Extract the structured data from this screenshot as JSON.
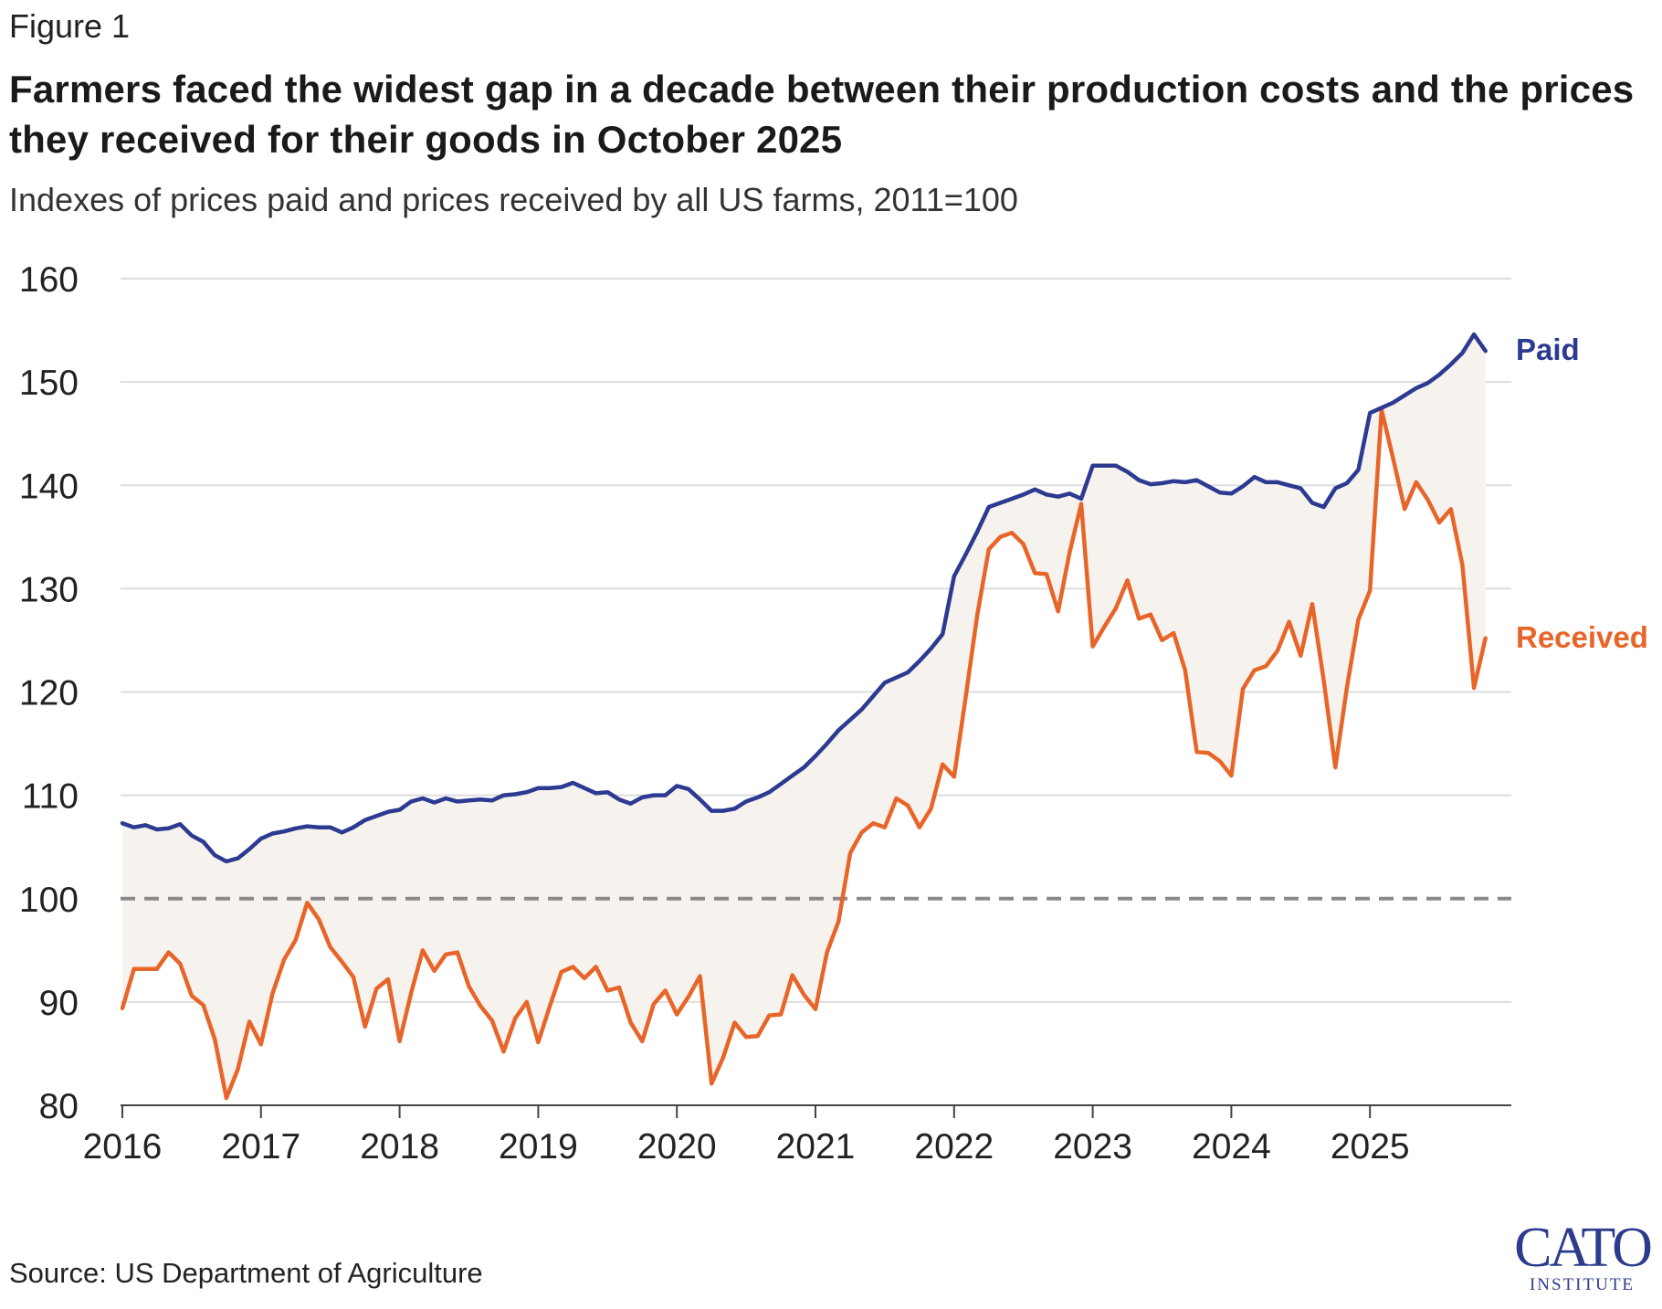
{
  "figure_label": "Figure 1",
  "source": "Source: US Department of Agriculture",
  "logo": {
    "main": "CATO",
    "sub": "INSTITUTE"
  },
  "colors": {
    "paid": "#2c3a91",
    "received": "#e8652a",
    "gap": "#f6f2ee",
    "grid": "#dddddd",
    "reference": "#8a8a8a"
  },
  "chart_data": {
    "type": "line",
    "title": "Farmers faced the widest gap in a decade between their production costs and the prices they received for their goods in October 2025",
    "subtitle": "Indexes of prices paid and prices received by all US farms, 2011=100",
    "xlabel": "",
    "ylabel": "",
    "ylim": [
      80,
      160
    ],
    "yticks": [
      80,
      90,
      100,
      110,
      120,
      130,
      140,
      150,
      160
    ],
    "x_tick_labels": [
      "2016",
      "2017",
      "2018",
      "2019",
      "2020",
      "2021",
      "2022",
      "2023",
      "2024",
      "2025"
    ],
    "reference_line": {
      "value": 100,
      "style": "dashed"
    },
    "x_start": "2016-01",
    "x_end": "2025-11",
    "frequency": "monthly",
    "shaded_between_series": true,
    "series": [
      {
        "name": "Paid",
        "label": "Paid",
        "values": [
          107.3,
          106.9,
          107.1,
          106.7,
          106.8,
          107.2,
          106.1,
          105.5,
          104.2,
          103.6,
          103.9,
          104.8,
          105.8,
          106.3,
          106.5,
          106.8,
          107.0,
          106.9,
          106.9,
          106.4,
          106.9,
          107.6,
          108.0,
          108.4,
          108.6,
          109.4,
          109.7,
          109.3,
          109.7,
          109.4,
          109.5,
          109.6,
          109.5,
          110.0,
          110.1,
          110.3,
          110.7,
          110.7,
          110.8,
          111.2,
          110.7,
          110.2,
          110.3,
          109.6,
          109.2,
          109.8,
          110.0,
          110.0,
          110.9,
          110.6,
          109.6,
          108.5,
          108.5,
          108.7,
          109.4,
          109.8,
          110.3,
          111.1,
          111.9,
          112.7,
          113.8,
          115.0,
          116.3,
          117.3,
          118.3,
          119.6,
          120.9,
          121.4,
          121.9,
          123.0,
          124.2,
          125.6,
          131.2,
          133.3,
          135.5,
          137.9,
          138.3,
          138.7,
          139.1,
          139.6,
          139.1,
          138.9,
          139.2,
          138.7,
          141.9,
          141.9,
          141.9,
          141.3,
          140.5,
          140.1,
          140.2,
          140.4,
          140.3,
          140.5,
          139.9,
          139.3,
          139.2,
          139.9,
          140.8,
          140.3,
          140.3,
          140.0,
          139.7,
          138.3,
          137.9,
          139.7,
          140.2,
          141.5,
          147.0,
          147.5,
          148.0,
          148.7,
          149.4,
          149.9,
          150.7,
          151.7,
          152.8,
          154.6,
          153.0
        ]
      },
      {
        "name": "Received",
        "label": "Received",
        "values": [
          89.4,
          93.2,
          93.2,
          93.2,
          94.8,
          93.7,
          90.6,
          89.7,
          86.4,
          80.7,
          83.5,
          88.1,
          85.9,
          90.8,
          94.1,
          96.0,
          99.6,
          98.0,
          95.3,
          93.9,
          92.4,
          87.6,
          91.3,
          92.2,
          86.2,
          90.9,
          95.0,
          93.0,
          94.6,
          94.8,
          91.5,
          89.6,
          88.2,
          85.2,
          88.4,
          90.0,
          86.1,
          89.6,
          92.9,
          93.4,
          92.3,
          93.4,
          91.1,
          91.4,
          88.0,
          86.2,
          89.8,
          91.1,
          88.8,
          90.5,
          92.5,
          82.1,
          84.6,
          88.0,
          86.6,
          86.7,
          88.7,
          88.8,
          92.6,
          90.7,
          89.3,
          94.8,
          97.8,
          104.4,
          106.4,
          107.3,
          106.9,
          109.7,
          109.0,
          106.9,
          108.7,
          113.0,
          111.8,
          119.5,
          127.4,
          133.8,
          135.0,
          135.4,
          134.3,
          131.5,
          131.4,
          127.8,
          133.5,
          138.2,
          124.4,
          126.3,
          128.1,
          130.8,
          127.1,
          127.5,
          125.0,
          125.7,
          122.1,
          114.2,
          114.1,
          113.3,
          111.9,
          120.3,
          122.1,
          122.5,
          124.0,
          126.8,
          123.5,
          128.5,
          121.1,
          112.7,
          120.4,
          127.0,
          129.8,
          147.3,
          142.6,
          137.7,
          140.3,
          138.6,
          136.4,
          137.7,
          132.3,
          120.4,
          125.2
        ]
      }
    ]
  }
}
